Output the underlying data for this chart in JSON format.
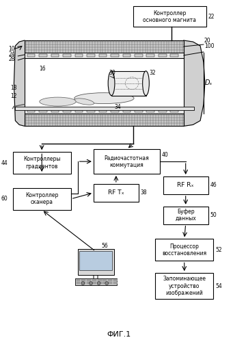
{
  "title": "ФИГ.1",
  "bg_color": "#ffffff",
  "labels": {
    "controller_magnet": "Контроллер\nосновного магнита",
    "gradient_controllers": "Контроллеры\nградиентов",
    "rf_switching": "Радиочастотная\nкоммутация",
    "rf_tx": "RF Tₓ",
    "rf_rx": "RF Rₓ",
    "data_buffer": "Буфер\nданных",
    "processor": "Процессор\nвосстановления",
    "memory": "Запоминающее\nустройство\nизображений",
    "scanner_controller": "Контроллер\nсканера"
  },
  "numbers": {
    "n10": "10",
    "n12": "12",
    "n16": "16",
    "n18": "18",
    "n20": "20",
    "n22": "22",
    "n24": "24",
    "n28": "28",
    "n30": "30",
    "n32": "32",
    "n34": "34",
    "n38": "38",
    "n40": "40",
    "n44": "44",
    "n46": "46",
    "n50": "50",
    "n52": "52",
    "n54": "54",
    "n56": "56",
    "n60": "60",
    "n100": "100",
    "ds": "Dₛ"
  }
}
